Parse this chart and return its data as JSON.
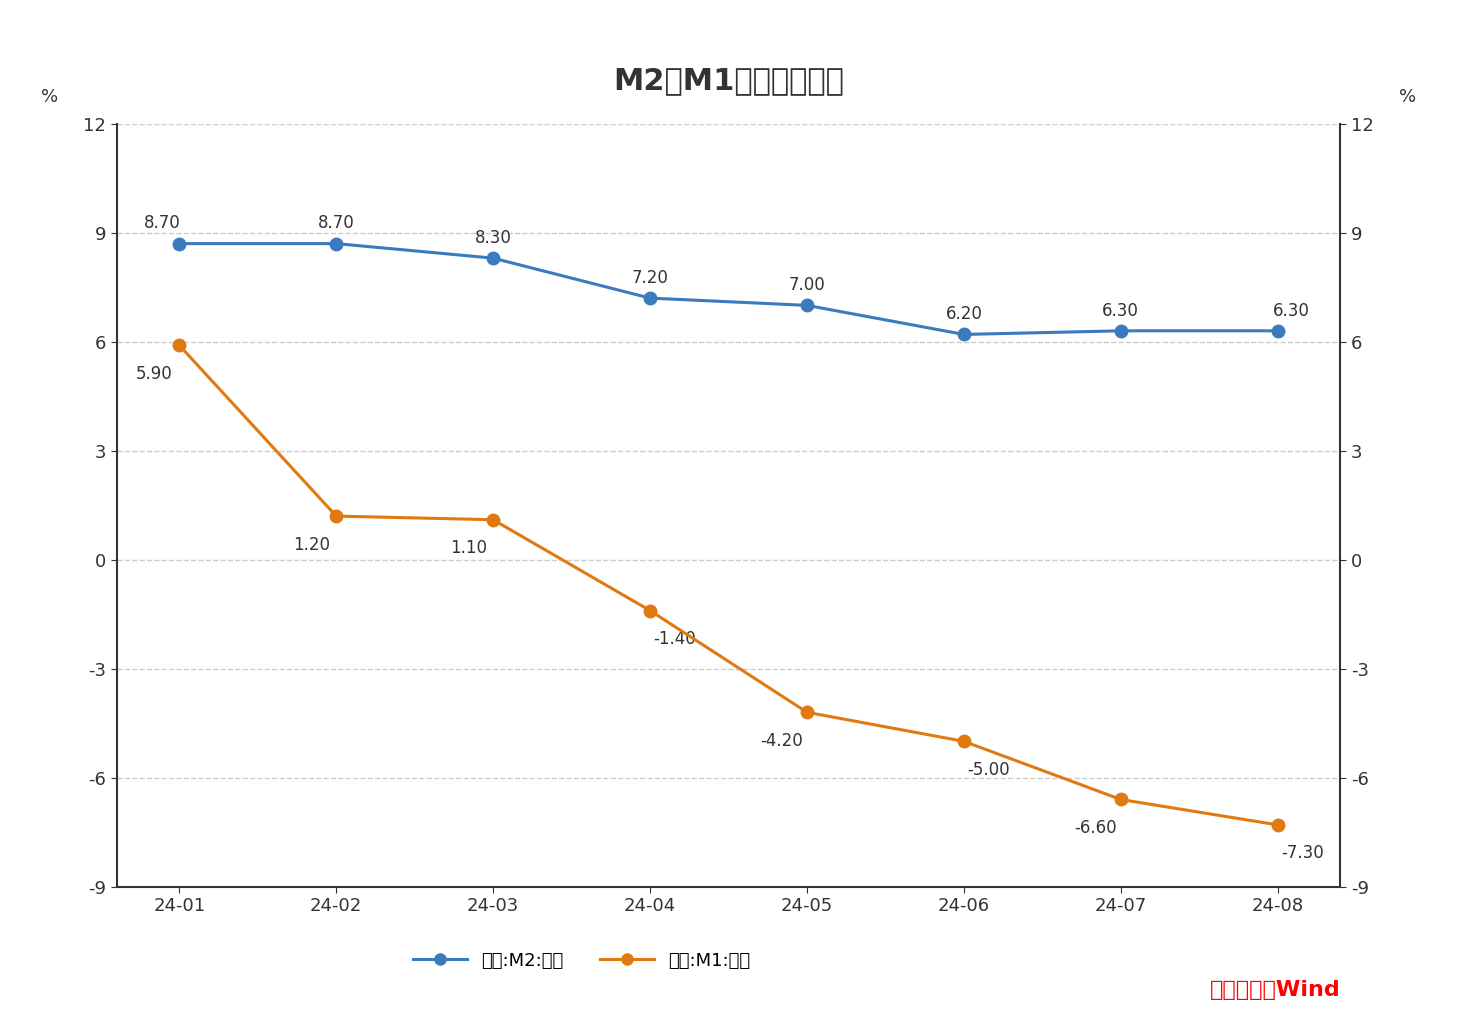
{
  "title": "M2和M1同比增速情况",
  "x_labels": [
    "24-01",
    "24-02",
    "24-03",
    "24-04",
    "24-05",
    "24-06",
    "24-07",
    "24-08"
  ],
  "m2_values": [
    8.7,
    8.7,
    8.3,
    7.2,
    7.0,
    6.2,
    6.3,
    6.3
  ],
  "m1_values": [
    5.9,
    1.2,
    1.1,
    -1.4,
    -4.2,
    -5.0,
    -6.6,
    -7.3
  ],
  "m2_color": "#3b7abf",
  "m1_color": "#e07a10",
  "ylim_min": -9,
  "ylim_max": 12,
  "yticks": [
    -9,
    -6,
    -3,
    0,
    3,
    6,
    9,
    12
  ],
  "ylabel_left": "%",
  "ylabel_right": "%",
  "legend_m2": "中国:M2:同比",
  "legend_m1": "中国:M1:同比",
  "source_text": "数据来源：Wind",
  "source_color": "#ff0000",
  "background_color": "#ffffff",
  "title_fontsize": 22,
  "label_fontsize": 13,
  "tick_fontsize": 13,
  "annotation_fontsize": 12,
  "legend_fontsize": 13,
  "source_fontsize": 16
}
